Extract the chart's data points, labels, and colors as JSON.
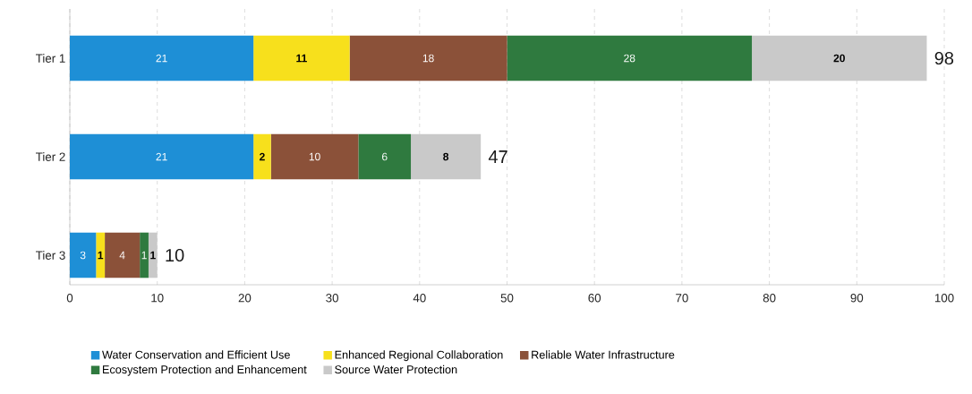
{
  "chart_data": {
    "type": "bar",
    "orientation": "horizontal",
    "stacked": true,
    "categories": [
      "Tier 1",
      "Tier 2",
      "Tier 3"
    ],
    "series": [
      {
        "name": "Water Conservation and Efficient Use",
        "color": "#1e8fd6",
        "values": [
          21,
          21,
          3
        ]
      },
      {
        "name": "Enhanced Regional Collaboration",
        "color": "#f7e01c",
        "values": [
          11,
          2,
          1
        ]
      },
      {
        "name": "Reliable Water Infrastructure",
        "color": "#8b5139",
        "values": [
          18,
          10,
          4
        ]
      },
      {
        "name": "Ecosystem Protection and Enhancement",
        "color": "#2f7a3f",
        "values": [
          28,
          6,
          1
        ]
      },
      {
        "name": "Source Water Protection",
        "color": "#c9c9c9",
        "values": [
          20,
          8,
          1
        ]
      }
    ],
    "totals": [
      "98",
      "47",
      "10"
    ],
    "xlim": [
      0,
      100
    ],
    "xticks": [
      0,
      10,
      20,
      30,
      40,
      50,
      60,
      70,
      80,
      90,
      100
    ],
    "grid": "x",
    "legend": "bottom",
    "data_labels": true
  }
}
